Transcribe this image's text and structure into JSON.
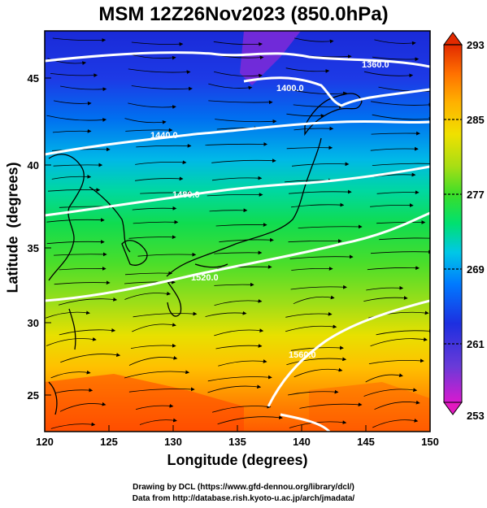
{
  "title": "MSM 12Z26Nov2023 (850.0hPa)",
  "axes": {
    "xlabel": "Longitude (degrees)",
    "ylabel": "Latitude  (degrees)",
    "xticks": [
      "120",
      "125",
      "130",
      "135",
      "140",
      "145",
      "150"
    ],
    "yticks": [
      "25",
      "30",
      "35",
      "40",
      "45"
    ],
    "xrange": [
      120,
      150
    ],
    "yrange": [
      22.4,
      47.6
    ]
  },
  "colorbar": {
    "labels": [
      "293",
      "285",
      "277",
      "269",
      "261",
      "253"
    ],
    "range": [
      253,
      293
    ],
    "colors": [
      "#d81acf",
      "#6a3ad8",
      "#1d2fe0",
      "#0079ff",
      "#00c8e6",
      "#00e070",
      "#3ade2a",
      "#a8de14",
      "#f0e000",
      "#ffb000",
      "#ff7000",
      "#e22a00"
    ]
  },
  "contours": [
    {
      "label": "1360.0"
    },
    {
      "label": "1400.0"
    },
    {
      "label": "1440.0"
    },
    {
      "label": "1480.0"
    },
    {
      "label": "1520.0"
    },
    {
      "label": "1560.0"
    }
  ],
  "credits": {
    "line1": "Drawing by DCL (https://www.gfd-dennou.org/library/dcl/)",
    "line2": "Data from http://database.rish.kyoto-u.ac.jp/arch/jmadata/"
  }
}
